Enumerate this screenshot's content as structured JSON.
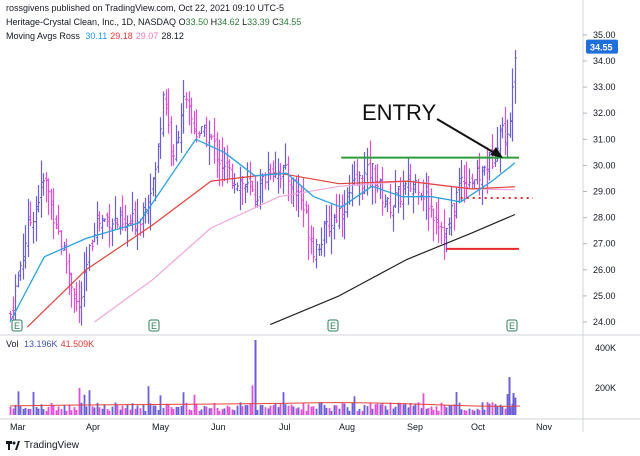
{
  "header": {
    "published": "rossgivens published on TradingView.com, Oct 22, 2021 09:10 UTC-5",
    "symbol_line": "Heritage-Crystal Clean, Inc., 1D, NASDAQ",
    "ohlc": [
      {
        "label": "O",
        "value": "33.50"
      },
      {
        "label": "H",
        "value": "34.62"
      },
      {
        "label": "L",
        "value": "33.39"
      },
      {
        "label": "C",
        "value": "34.55"
      }
    ],
    "moving_avgs_label": "Moving Avgs Ross",
    "moving_avgs_values": [
      {
        "value": "30.11",
        "color": "#2196f3"
      },
      {
        "value": "29.18",
        "color": "#e53935"
      },
      {
        "value": "29.07",
        "color": "#e879c7"
      },
      {
        "value": "28.12",
        "color": "#131722"
      }
    ]
  },
  "volume_header": {
    "label": "Vol",
    "values": [
      {
        "value": "13.196K",
        "color": "#3f51b5"
      },
      {
        "value": "41.509K",
        "color": "#e53935"
      }
    ]
  },
  "footer": {
    "brand": "TradingView"
  },
  "colors": {
    "up": "#6b5fd6",
    "down": "#e24fd6",
    "ma_fast": "#29a3e0",
    "ma_mid": "#e0443a",
    "ma_slow": "#f0a6dc",
    "ma_long": "#222222",
    "resistance": "#2e9e3a",
    "stop": "#e52b2b",
    "price_tag": "#1e6fd9"
  },
  "chart_data": {
    "type": "ohlc-bar",
    "y_axis": {
      "min": 24,
      "max": 35,
      "ticks": [
        "24.00",
        "25.00",
        "26.00",
        "27.00",
        "28.00",
        "29.00",
        "30.00",
        "31.00",
        "32.00",
        "33.00",
        "34.00",
        "35.00"
      ]
    },
    "volume_axis": {
      "ticks": [
        "200K",
        "400K"
      ]
    },
    "x_ticks": [
      "Mar",
      "Apr",
      "May",
      "Jun",
      "Jul",
      "Aug",
      "Sep",
      "Oct",
      "Nov"
    ],
    "last_price": "34.55",
    "annotation": "ENTRY",
    "earnings_marker": "E",
    "earnings_marker_months": [
      "Mar",
      "May",
      "Aug",
      "Oct"
    ],
    "levels": {
      "resistance": 30.3,
      "stop": 26.8,
      "dotted_support": 28.75
    },
    "price_path": [
      {
        "x": "Mar 1",
        "y": 24.3
      },
      {
        "x": "Mar 8",
        "y": 27.5
      },
      {
        "x": "Mar 15",
        "y": 29.5
      },
      {
        "x": "Mar 22",
        "y": 27.0
      },
      {
        "x": "Mar 29",
        "y": 24.4
      },
      {
        "x": "Apr 5",
        "y": 27.8
      },
      {
        "x": "Apr 12",
        "y": 28.0
      },
      {
        "x": "Apr 19",
        "y": 27.6
      },
      {
        "x": "Apr 26",
        "y": 28.0
      },
      {
        "x": "May 3",
        "y": 29.8
      },
      {
        "x": "May 7",
        "y": 33.0
      },
      {
        "x": "May 12",
        "y": 30.0
      },
      {
        "x": "May 17",
        "y": 32.5
      },
      {
        "x": "May 24",
        "y": 31.3
      },
      {
        "x": "Jun 1",
        "y": 31.0
      },
      {
        "x": "Jun 7",
        "y": 29.8
      },
      {
        "x": "Jun 14",
        "y": 29.4
      },
      {
        "x": "Jun 21",
        "y": 28.8
      },
      {
        "x": "Jun 28",
        "y": 30.0
      },
      {
        "x": "Jul 5",
        "y": 29.6
      },
      {
        "x": "Jul 12",
        "y": 28.8
      },
      {
        "x": "Jul 19",
        "y": 26.8
      },
      {
        "x": "Jul 26",
        "y": 27.6
      },
      {
        "x": "Aug 2",
        "y": 28.4
      },
      {
        "x": "Aug 9",
        "y": 29.3
      },
      {
        "x": "Aug 16",
        "y": 29.8
      },
      {
        "x": "Aug 23",
        "y": 28.4
      },
      {
        "x": "Aug 30",
        "y": 29.0
      },
      {
        "x": "Sep 6",
        "y": 29.4
      },
      {
        "x": "Sep 13",
        "y": 28.3
      },
      {
        "x": "Sep 20",
        "y": 27.4
      },
      {
        "x": "Sep 27",
        "y": 29.5
      },
      {
        "x": "Oct 4",
        "y": 29.5
      },
      {
        "x": "Oct 11",
        "y": 30.3
      },
      {
        "x": "Oct 15",
        "y": 31.5
      },
      {
        "x": "Oct 19",
        "y": 30.8
      },
      {
        "x": "Oct 21",
        "y": 33.8
      },
      {
        "x": "Oct 22",
        "y": 34.55
      }
    ],
    "ma_fast": [
      {
        "x": "Mar 1",
        "y": 24.0
      },
      {
        "x": "Mar 15",
        "y": 26.5
      },
      {
        "x": "Apr 1",
        "y": 27.2
      },
      {
        "x": "Apr 26",
        "y": 27.8
      },
      {
        "x": "May 10",
        "y": 29.5
      },
      {
        "x": "May 24",
        "y": 31.0
      },
      {
        "x": "Jun 7",
        "y": 30.5
      },
      {
        "x": "Jun 21",
        "y": 29.6
      },
      {
        "x": "Jul 5",
        "y": 29.7
      },
      {
        "x": "Jul 19",
        "y": 28.8
      },
      {
        "x": "Aug 2",
        "y": 28.4
      },
      {
        "x": "Aug 16",
        "y": 29.2
      },
      {
        "x": "Aug 30",
        "y": 28.8
      },
      {
        "x": "Sep 13",
        "y": 28.8
      },
      {
        "x": "Sep 27",
        "y": 28.6
      },
      {
        "x": "Oct 11",
        "y": 29.4
      },
      {
        "x": "Oct 22",
        "y": 30.1
      }
    ],
    "ma_mid": [
      {
        "x": "Mar 8",
        "y": 23.8
      },
      {
        "x": "Apr 1",
        "y": 26.0
      },
      {
        "x": "May 1",
        "y": 27.7
      },
      {
        "x": "Jun 1",
        "y": 29.4
      },
      {
        "x": "Jul 1",
        "y": 29.7
      },
      {
        "x": "Aug 1",
        "y": 29.3
      },
      {
        "x": "Sep 1",
        "y": 29.4
      },
      {
        "x": "Oct 1",
        "y": 29.1
      },
      {
        "x": "Oct 22",
        "y": 29.18
      }
    ],
    "ma_slow": [
      {
        "x": "Apr 5",
        "y": 24.0
      },
      {
        "x": "May 1",
        "y": 25.6
      },
      {
        "x": "Jun 1",
        "y": 27.6
      },
      {
        "x": "Jul 1",
        "y": 28.8
      },
      {
        "x": "Aug 1",
        "y": 29.2
      },
      {
        "x": "Sep 1",
        "y": 29.4
      },
      {
        "x": "Oct 1",
        "y": 29.1
      },
      {
        "x": "Oct 22",
        "y": 29.07
      }
    ],
    "ma_long": [
      {
        "x": "Jun 28",
        "y": 23.9
      },
      {
        "x": "Aug 1",
        "y": 25.0
      },
      {
        "x": "Sep 1",
        "y": 26.4
      },
      {
        "x": "Oct 1",
        "y": 27.4
      },
      {
        "x": "Oct 22",
        "y": 28.12
      }
    ]
  }
}
